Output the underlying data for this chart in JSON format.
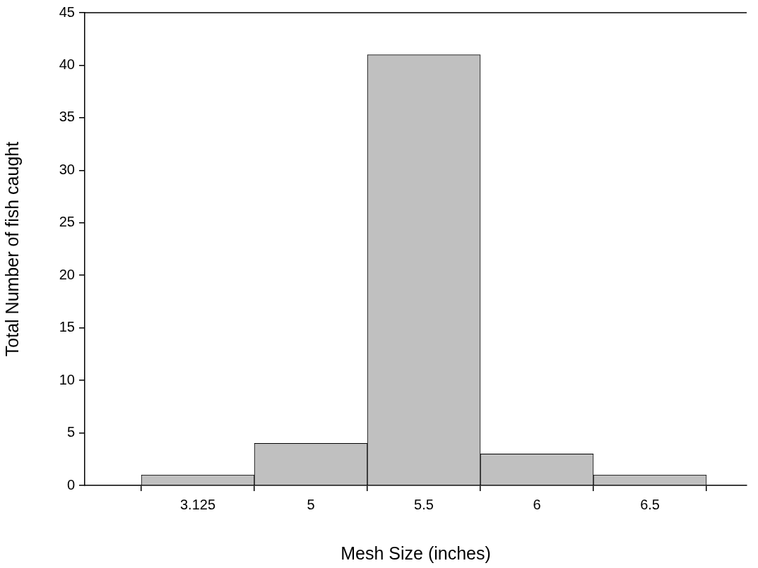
{
  "chart_data": {
    "type": "bar",
    "xlabel": "Mesh Size (inches)",
    "ylabel": "Total Number of fish caught",
    "categories": [
      "3.125",
      "5",
      "5.5",
      "6",
      "6.5"
    ],
    "values": [
      1,
      4,
      41,
      3,
      1
    ],
    "color": "#c0c0c0",
    "ylim": [
      0,
      45
    ],
    "yticks": [
      0,
      5,
      10,
      15,
      20,
      25,
      30,
      35,
      40,
      45
    ],
    "grid": false,
    "legend": false
  }
}
